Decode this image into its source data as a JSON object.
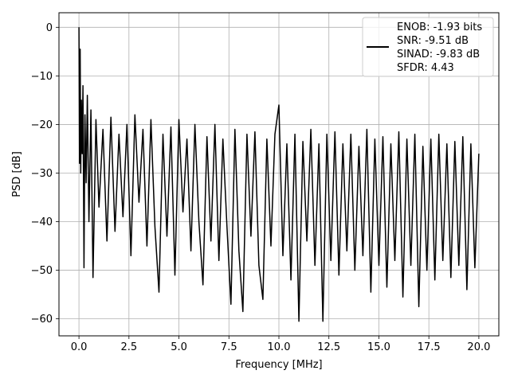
{
  "chart_data": {
    "type": "line",
    "xlabel": "Frequency [MHz]",
    "ylabel": "PSD [dB]",
    "xlim": [
      -1.0,
      21.0
    ],
    "ylim": [
      -63.5,
      3.0
    ],
    "xticks": [
      0.0,
      2.5,
      5.0,
      7.5,
      10.0,
      12.5,
      15.0,
      17.5,
      20.0
    ],
    "xtick_labels": [
      "0.0",
      "2.5",
      "5.0",
      "7.5",
      "10.0",
      "12.5",
      "15.0",
      "17.5",
      "20.0"
    ],
    "yticks": [
      0,
      -10,
      -20,
      -30,
      -40,
      -50,
      -60
    ],
    "ytick_labels": [
      "0",
      "−10",
      "−20",
      "−30",
      "−40",
      "−50",
      "−60"
    ],
    "grid": true,
    "legend_position": "top-right",
    "line_color": "#000000",
    "series": [
      {
        "name": "ENOB: -1.93 bits\nSNR: -9.51 dB\nSINAD: -9.83 dB\nSFDR: 4.43",
        "x": [
          0.0,
          0.03,
          0.06,
          0.09,
          0.12,
          0.16,
          0.2,
          0.25,
          0.3,
          0.36,
          0.42,
          0.5,
          0.6,
          0.7,
          0.85,
          1.0,
          1.2,
          1.4,
          1.6,
          1.8,
          2.0,
          2.2,
          2.4,
          2.6,
          2.8,
          3.0,
          3.2,
          3.4,
          3.6,
          3.8,
          4.0,
          4.2,
          4.4,
          4.6,
          4.8,
          5.0,
          5.2,
          5.4,
          5.6,
          5.8,
          6.0,
          6.2,
          6.4,
          6.6,
          6.8,
          7.0,
          7.2,
          7.4,
          7.6,
          7.8,
          8.0,
          8.2,
          8.4,
          8.6,
          8.8,
          9.0,
          9.2,
          9.4,
          9.6,
          9.8,
          10.0,
          10.2,
          10.4,
          10.6,
          10.8,
          11.0,
          11.2,
          11.4,
          11.6,
          11.8,
          12.0,
          12.2,
          12.4,
          12.6,
          12.8,
          13.0,
          13.2,
          13.4,
          13.6,
          13.8,
          14.0,
          14.2,
          14.4,
          14.6,
          14.8,
          15.0,
          15.2,
          15.4,
          15.6,
          15.8,
          16.0,
          16.2,
          16.4,
          16.6,
          16.8,
          17.0,
          17.2,
          17.4,
          17.6,
          17.8,
          18.0,
          18.2,
          18.4,
          18.6,
          18.8,
          19.0,
          19.2,
          19.4,
          19.6,
          19.8,
          20.0
        ],
        "y": [
          0.0,
          -28.0,
          -4.5,
          -30.0,
          -15.0,
          -26.0,
          -12.0,
          -49.5,
          -18.0,
          -32.0,
          -14.0,
          -40.0,
          -17.0,
          -51.5,
          -19.0,
          -37.0,
          -21.0,
          -44.0,
          -18.5,
          -42.0,
          -22.0,
          -39.0,
          -20.0,
          -47.0,
          -18.0,
          -36.0,
          -21.0,
          -45.0,
          -19.0,
          -41.0,
          -54.5,
          -22.0,
          -43.0,
          -20.5,
          -51.0,
          -19.0,
          -38.0,
          -23.0,
          -46.0,
          -20.0,
          -40.0,
          -53.0,
          -22.5,
          -44.0,
          -20.0,
          -48.0,
          -23.0,
          -41.0,
          -57.0,
          -21.0,
          -46.0,
          -58.5,
          -22.0,
          -43.0,
          -21.5,
          -49.0,
          -56.0,
          -23.0,
          -45.0,
          -22.0,
          -16.0,
          -47.0,
          -24.0,
          -52.0,
          -22.0,
          -60.5,
          -23.5,
          -44.0,
          -21.0,
          -49.0,
          -24.0,
          -60.5,
          -22.0,
          -48.0,
          -21.5,
          -51.0,
          -24.0,
          -46.0,
          -22.0,
          -50.0,
          -24.5,
          -47.0,
          -21.0,
          -54.5,
          -23.0,
          -49.0,
          -22.5,
          -53.5,
          -24.0,
          -48.0,
          -21.5,
          -55.5,
          -23.0,
          -49.0,
          -22.0,
          -57.5,
          -24.5,
          -50.0,
          -23.0,
          -52.0,
          -22.0,
          -48.0,
          -24.0,
          -51.5,
          -23.5,
          -49.0,
          -22.5,
          -54.0,
          -24.0,
          -49.5,
          -26.0
        ]
      }
    ]
  }
}
